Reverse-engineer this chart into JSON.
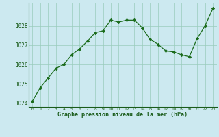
{
  "x": [
    0,
    1,
    2,
    3,
    4,
    5,
    6,
    7,
    8,
    9,
    10,
    11,
    12,
    13,
    14,
    15,
    16,
    17,
    18,
    19,
    20,
    21,
    22,
    23
  ],
  "y": [
    1024.1,
    1024.8,
    1025.3,
    1025.8,
    1026.0,
    1026.5,
    1026.8,
    1027.2,
    1027.65,
    1027.75,
    1028.3,
    1028.2,
    1028.3,
    1028.3,
    1027.9,
    1027.3,
    1027.05,
    1026.7,
    1026.65,
    1026.5,
    1026.4,
    1027.35,
    1028.0,
    1028.9
  ],
  "ylim": [
    1023.8,
    1029.2
  ],
  "yticks": [
    1024,
    1025,
    1026,
    1027,
    1028
  ],
  "xticks": [
    0,
    1,
    2,
    3,
    4,
    5,
    6,
    7,
    8,
    9,
    10,
    11,
    12,
    13,
    14,
    15,
    16,
    17,
    18,
    19,
    20,
    21,
    22,
    23
  ],
  "xlabel": "Graphe pression niveau de la mer (hPa)",
  "line_color": "#1a6b1a",
  "marker": "D",
  "marker_size": 2.2,
  "bg_color": "#cce9f0",
  "grid_color": "#99ccbb",
  "title": ""
}
